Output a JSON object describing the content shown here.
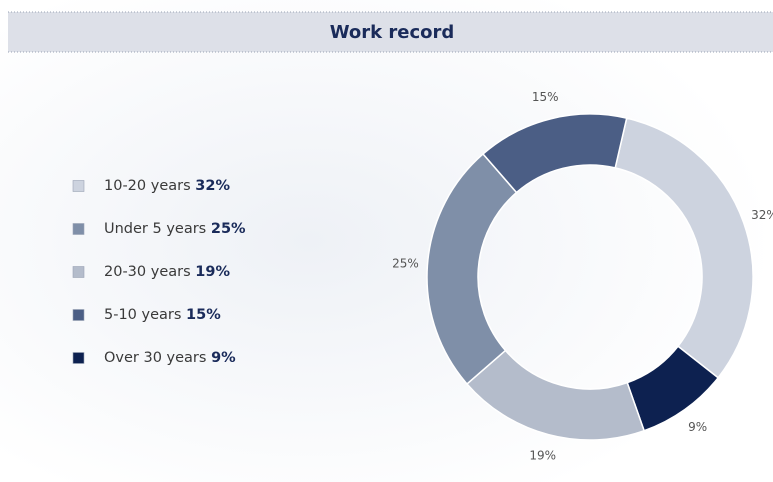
{
  "chart_data": {
    "type": "donut",
    "title": "Work record",
    "categories": [
      "10-20 years",
      "Under 5 years",
      "20-30 years",
      "5-10 years",
      "Over 30 years"
    ],
    "values": [
      32,
      25,
      19,
      15,
      9
    ],
    "value_labels": [
      "32%",
      "25%",
      "19%",
      "15%",
      "9%"
    ],
    "colors": [
      "#cdd3df",
      "#7f8fa8",
      "#b4bccb",
      "#4b5e85",
      "#0d2150"
    ],
    "legend": "left"
  }
}
